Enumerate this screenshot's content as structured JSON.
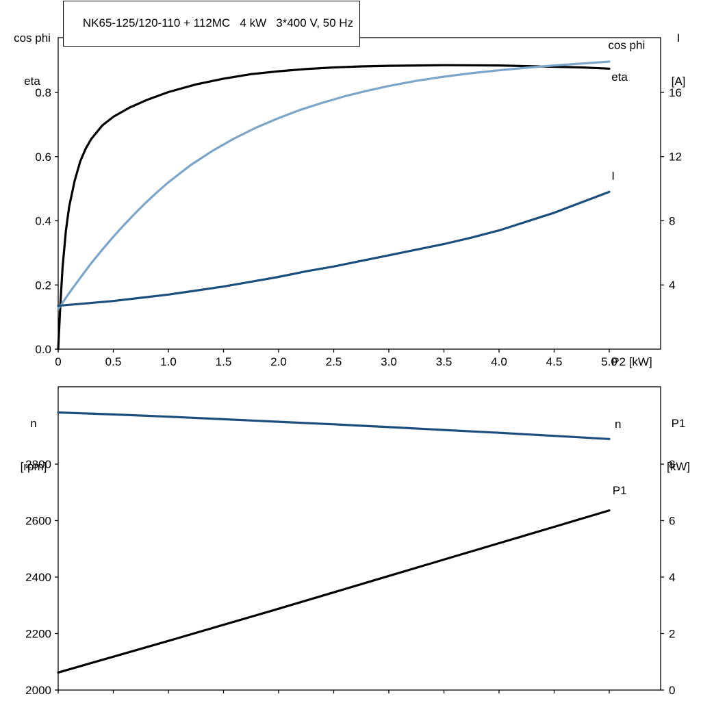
{
  "colors": {
    "black": "#000000",
    "light_blue": "#7ba5c9",
    "dark_blue": "#1b4e7d",
    "axis": "#000000"
  },
  "chart_data": [
    {
      "type": "line",
      "title": "NK65-125/120-110 + 112MC   4 kW   3*400 V, 50 Hz",
      "x_axis_label": "P2 [kW]",
      "left_axis_title": [
        "cos phi",
        "eta"
      ],
      "right_axis_title": [
        "I",
        "[A]"
      ],
      "x_range": [
        0,
        5.466
      ],
      "left_range": [
        0,
        0.9707
      ],
      "right_range": [
        0,
        19.413
      ],
      "x_ticks": [
        {
          "v": 0,
          "label": "0"
        },
        {
          "v": 0.5,
          "label": "0.5"
        },
        {
          "v": 1.0,
          "label": "1.0"
        },
        {
          "v": 1.5,
          "label": "1.5"
        },
        {
          "v": 2.0,
          "label": "2.0"
        },
        {
          "v": 2.5,
          "label": "2.5"
        },
        {
          "v": 3.0,
          "label": "3.0"
        },
        {
          "v": 3.5,
          "label": "3.5"
        },
        {
          "v": 4.0,
          "label": "4.0"
        },
        {
          "v": 4.5,
          "label": "4.5"
        },
        {
          "v": 5.0,
          "label": "5.0"
        }
      ],
      "left_ticks": [
        {
          "v": 0.0,
          "label": "0.0"
        },
        {
          "v": 0.2,
          "label": "0.2"
        },
        {
          "v": 0.4,
          "label": "0.4"
        },
        {
          "v": 0.6,
          "label": "0.6"
        },
        {
          "v": 0.8,
          "label": "0.8"
        }
      ],
      "right_ticks": [
        {
          "v": 4,
          "label": "4"
        },
        {
          "v": 8,
          "label": "8"
        },
        {
          "v": 12,
          "label": "12"
        },
        {
          "v": 16,
          "label": "16"
        }
      ],
      "series": [
        {
          "name": "eta",
          "axis": "left",
          "color": "#000000",
          "label": {
            "text": "eta",
            "x": 5.02,
            "v": 0.836
          },
          "points": [
            [
              0,
              0
            ],
            [
              0.02,
              0.14
            ],
            [
              0.04,
              0.255
            ],
            [
              0.07,
              0.37
            ],
            [
              0.1,
              0.445
            ],
            [
              0.15,
              0.525
            ],
            [
              0.2,
              0.585
            ],
            [
              0.25,
              0.625
            ],
            [
              0.3,
              0.655
            ],
            [
              0.4,
              0.697
            ],
            [
              0.5,
              0.724
            ],
            [
              0.65,
              0.753
            ],
            [
              0.8,
              0.776
            ],
            [
              1.0,
              0.801
            ],
            [
              1.25,
              0.825
            ],
            [
              1.5,
              0.843
            ],
            [
              1.75,
              0.857
            ],
            [
              2.0,
              0.866
            ],
            [
              2.25,
              0.873
            ],
            [
              2.5,
              0.878
            ],
            [
              2.75,
              0.881
            ],
            [
              3.0,
              0.883
            ],
            [
              3.5,
              0.885
            ],
            [
              4.0,
              0.884
            ],
            [
              4.25,
              0.882
            ],
            [
              4.5,
              0.88
            ],
            [
              4.75,
              0.878
            ],
            [
              5.0,
              0.874
            ]
          ]
        },
        {
          "name": "cos phi",
          "axis": "left",
          "color": "#7ba5c9",
          "label": {
            "text": "cos phi",
            "x": 4.99,
            "v": 0.935
          },
          "points": [
            [
              0,
              0.125
            ],
            [
              0.1,
              0.175
            ],
            [
              0.2,
              0.222
            ],
            [
              0.3,
              0.268
            ],
            [
              0.4,
              0.31
            ],
            [
              0.5,
              0.35
            ],
            [
              0.6,
              0.388
            ],
            [
              0.7,
              0.424
            ],
            [
              0.8,
              0.458
            ],
            [
              0.9,
              0.49
            ],
            [
              1.0,
              0.52
            ],
            [
              1.2,
              0.573
            ],
            [
              1.4,
              0.618
            ],
            [
              1.6,
              0.657
            ],
            [
              1.8,
              0.691
            ],
            [
              2.0,
              0.72
            ],
            [
              2.2,
              0.746
            ],
            [
              2.4,
              0.768
            ],
            [
              2.6,
              0.788
            ],
            [
              2.8,
              0.805
            ],
            [
              3.0,
              0.82
            ],
            [
              3.25,
              0.836
            ],
            [
              3.5,
              0.849
            ],
            [
              3.75,
              0.86
            ],
            [
              4.0,
              0.869
            ],
            [
              4.25,
              0.877
            ],
            [
              4.5,
              0.884
            ],
            [
              4.75,
              0.89
            ],
            [
              5.0,
              0.896
            ]
          ]
        },
        {
          "name": "I",
          "axis": "right",
          "color": "#1b4e7d",
          "label": {
            "text": "I",
            "x": 5.02,
            "v": 10.55
          },
          "points": [
            [
              0,
              2.7
            ],
            [
              0.25,
              2.85
            ],
            [
              0.5,
              3.0
            ],
            [
              0.75,
              3.2
            ],
            [
              1.0,
              3.4
            ],
            [
              1.25,
              3.65
            ],
            [
              1.5,
              3.9
            ],
            [
              1.75,
              4.2
            ],
            [
              2.0,
              4.5
            ],
            [
              2.25,
              4.85
            ],
            [
              2.5,
              5.15
            ],
            [
              2.75,
              5.5
            ],
            [
              3.0,
              5.85
            ],
            [
              3.25,
              6.2
            ],
            [
              3.5,
              6.55
            ],
            [
              3.75,
              6.95
            ],
            [
              4.0,
              7.4
            ],
            [
              4.25,
              7.95
            ],
            [
              4.5,
              8.5
            ],
            [
              4.75,
              9.15
            ],
            [
              5.0,
              9.8
            ]
          ]
        }
      ]
    },
    {
      "type": "line",
      "title": "",
      "x_axis_label": "",
      "left_axis_title": [
        "n",
        "[rpm]"
      ],
      "right_axis_title": [
        "P1",
        "[kW]"
      ],
      "x_range": [
        0,
        5.466
      ],
      "left_range": [
        2000,
        3073.9
      ],
      "right_range": [
        0,
        10.739
      ],
      "x_ticks": [
        {
          "v": 0,
          "label": ""
        },
        {
          "v": 0.5,
          "label": ""
        },
        {
          "v": 1.0,
          "label": ""
        },
        {
          "v": 1.5,
          "label": ""
        },
        {
          "v": 2.0,
          "label": ""
        },
        {
          "v": 2.5,
          "label": ""
        },
        {
          "v": 3.0,
          "label": ""
        },
        {
          "v": 3.5,
          "label": ""
        },
        {
          "v": 4.0,
          "label": ""
        },
        {
          "v": 4.5,
          "label": ""
        },
        {
          "v": 5.0,
          "label": ""
        }
      ],
      "left_ticks": [
        {
          "v": 2000,
          "label": "2000"
        },
        {
          "v": 2200,
          "label": "2200"
        },
        {
          "v": 2400,
          "label": "2400"
        },
        {
          "v": 2600,
          "label": "2600"
        },
        {
          "v": 2800,
          "label": "2800"
        }
      ],
      "right_ticks": [
        {
          "v": 0,
          "label": "0"
        },
        {
          "v": 2,
          "label": "2"
        },
        {
          "v": 4,
          "label": "4"
        },
        {
          "v": 6,
          "label": "6"
        },
        {
          "v": 8,
          "label": "8"
        }
      ],
      "series": [
        {
          "name": "n",
          "axis": "left",
          "color": "#1b4e7d",
          "label": {
            "text": "n",
            "x": 5.05,
            "v": 2929
          },
          "points": [
            [
              0,
              2983
            ],
            [
              0.5,
              2976
            ],
            [
              1.0,
              2968
            ],
            [
              1.5,
              2959
            ],
            [
              2.0,
              2950
            ],
            [
              2.5,
              2941
            ],
            [
              3.0,
              2931
            ],
            [
              3.5,
              2921
            ],
            [
              4.0,
              2911
            ],
            [
              4.5,
              2900
            ],
            [
              5.0,
              2889
            ]
          ]
        },
        {
          "name": "P1",
          "axis": "right",
          "color": "#000000",
          "label": {
            "text": "P1",
            "x": 5.03,
            "v": 6.93
          },
          "points": [
            [
              0,
              0.62
            ],
            [
              0.5,
              1.18
            ],
            [
              1.0,
              1.74
            ],
            [
              1.5,
              2.31
            ],
            [
              2.0,
              2.88
            ],
            [
              2.5,
              3.46
            ],
            [
              3.0,
              4.04
            ],
            [
              3.5,
              4.62
            ],
            [
              4.0,
              5.2
            ],
            [
              4.5,
              5.78
            ],
            [
              5.0,
              6.36
            ]
          ]
        }
      ]
    }
  ]
}
